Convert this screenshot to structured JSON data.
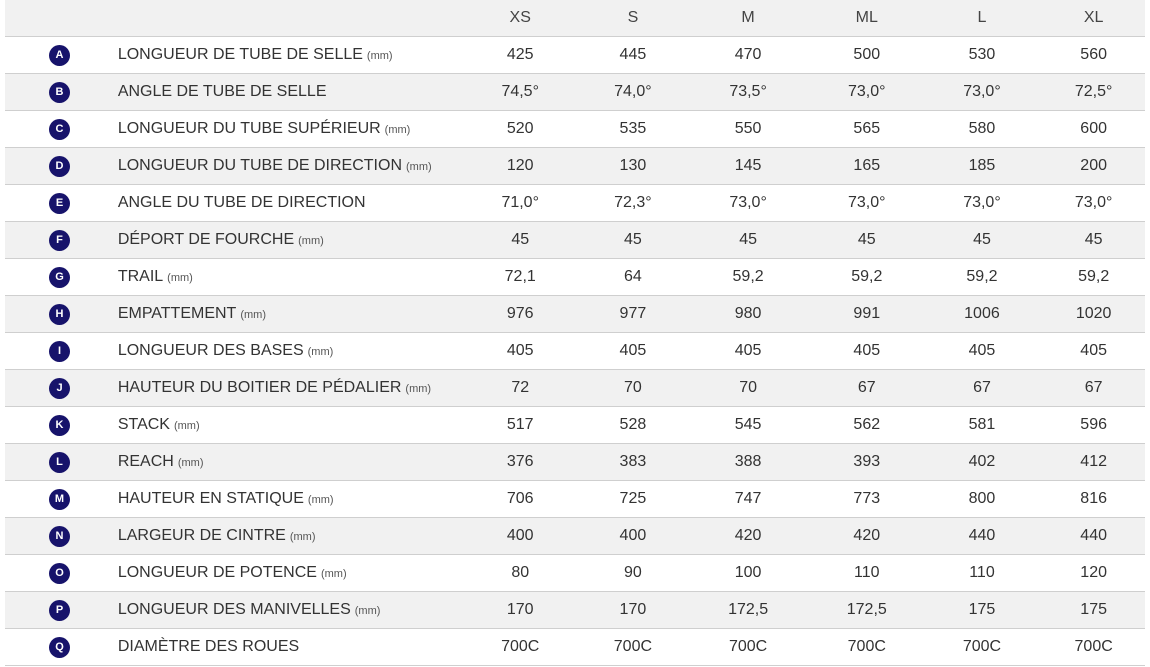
{
  "sizes": [
    "XS",
    "S",
    "M",
    "ML",
    "L",
    "XL"
  ],
  "rows": [
    {
      "letter": "A",
      "label": "LONGUEUR DE TUBE DE SELLE",
      "unit": "(mm)",
      "values": [
        "425",
        "445",
        "470",
        "500",
        "530",
        "560"
      ]
    },
    {
      "letter": "B",
      "label": "ANGLE DE TUBE DE SELLE",
      "unit": "",
      "values": [
        "74,5°",
        "74,0°",
        "73,5°",
        "73,0°",
        "73,0°",
        "72,5°"
      ]
    },
    {
      "letter": "C",
      "label": "LONGUEUR DU TUBE SUPÉRIEUR",
      "unit": "(mm)",
      "values": [
        "520",
        "535",
        "550",
        "565",
        "580",
        "600"
      ]
    },
    {
      "letter": "D",
      "label": "LONGUEUR DU TUBE DE DIRECTION",
      "unit": "(mm)",
      "values": [
        "120",
        "130",
        "145",
        "165",
        "185",
        "200"
      ]
    },
    {
      "letter": "E",
      "label": "ANGLE DU TUBE DE DIRECTION",
      "unit": "",
      "values": [
        "71,0°",
        "72,3°",
        "73,0°",
        "73,0°",
        "73,0°",
        "73,0°"
      ]
    },
    {
      "letter": "F",
      "label": "DÉPORT DE FOURCHE",
      "unit": "(mm)",
      "values": [
        "45",
        "45",
        "45",
        "45",
        "45",
        "45"
      ]
    },
    {
      "letter": "G",
      "label": "TRAIL",
      "unit": "(mm)",
      "values": [
        "72,1",
        "64",
        "59,2",
        "59,2",
        "59,2",
        "59,2"
      ]
    },
    {
      "letter": "H",
      "label": "EMPATTEMENT",
      "unit": "(mm)",
      "values": [
        "976",
        "977",
        "980",
        "991",
        "1006",
        "1020"
      ]
    },
    {
      "letter": "I",
      "label": "LONGUEUR DES BASES",
      "unit": "(mm)",
      "values": [
        "405",
        "405",
        "405",
        "405",
        "405",
        "405"
      ]
    },
    {
      "letter": "J",
      "label": "HAUTEUR DU BOITIER DE PÉDALIER",
      "unit": "(mm)",
      "values": [
        "72",
        "70",
        "70",
        "67",
        "67",
        "67"
      ]
    },
    {
      "letter": "K",
      "label": "STACK",
      "unit": "(mm)",
      "values": [
        "517",
        "528",
        "545",
        "562",
        "581",
        "596"
      ]
    },
    {
      "letter": "L",
      "label": "REACH",
      "unit": "(mm)",
      "values": [
        "376",
        "383",
        "388",
        "393",
        "402",
        "412"
      ]
    },
    {
      "letter": "M",
      "label": "HAUTEUR EN STATIQUE",
      "unit": "(mm)",
      "values": [
        "706",
        "725",
        "747",
        "773",
        "800",
        "816"
      ]
    },
    {
      "letter": "N",
      "label": "LARGEUR DE CINTRE",
      "unit": "(mm)",
      "values": [
        "400",
        "400",
        "420",
        "420",
        "440",
        "440"
      ]
    },
    {
      "letter": "O",
      "label": "LONGUEUR DE POTENCE",
      "unit": "(mm)",
      "values": [
        "80",
        "90",
        "100",
        "110",
        "110",
        "120"
      ]
    },
    {
      "letter": "P",
      "label": "LONGUEUR DES MANIVELLES",
      "unit": "(mm)",
      "values": [
        "170",
        "170",
        "172,5",
        "172,5",
        "175",
        "175"
      ]
    },
    {
      "letter": "Q",
      "label": "DIAMÈTRE DES ROUES",
      "unit": "",
      "values": [
        "700C",
        "700C",
        "700C",
        "700C",
        "700C",
        "700C"
      ]
    }
  ],
  "colors": {
    "badge": "#17136b",
    "row_alt": "#f1f1f1",
    "divider": "#cfcfcf",
    "text": "#333333"
  }
}
